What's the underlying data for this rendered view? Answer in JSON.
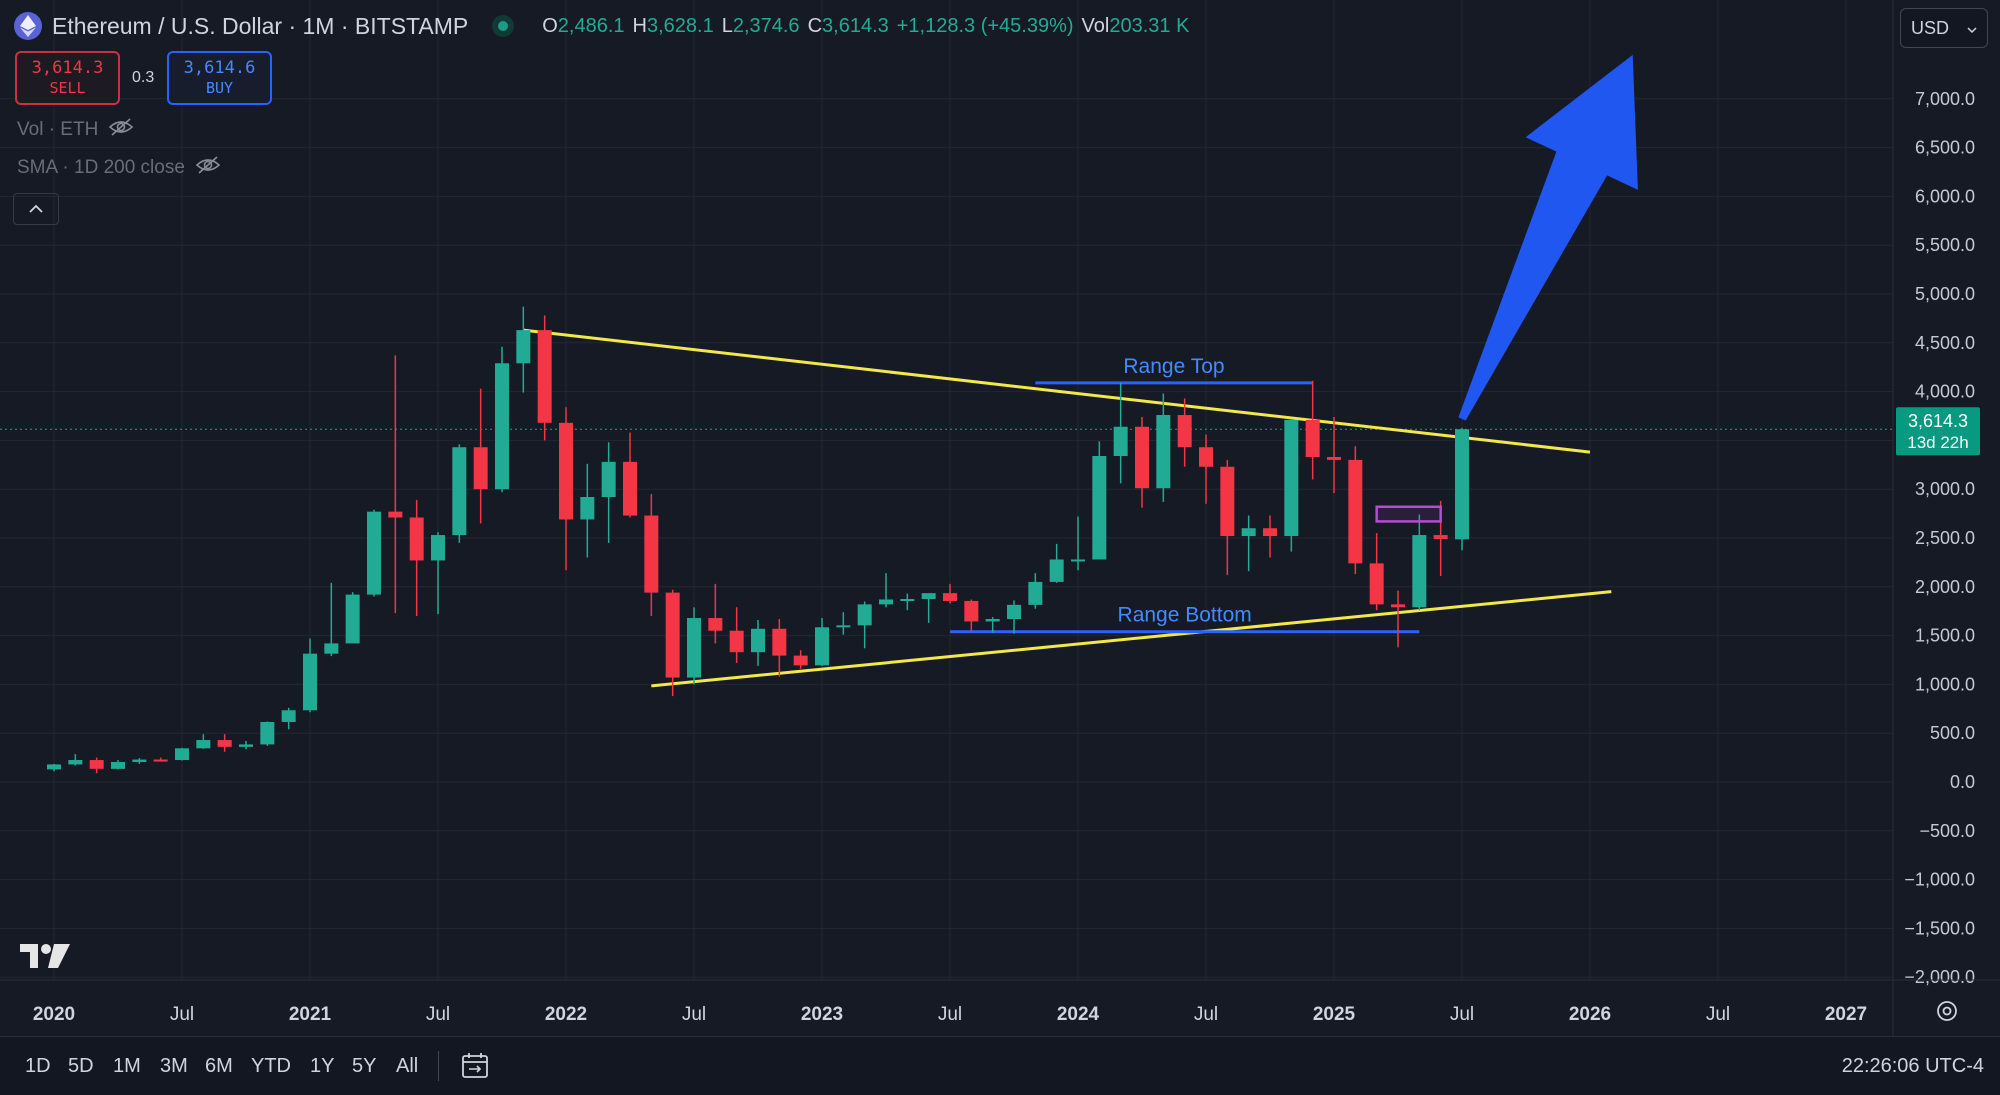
{
  "header": {
    "title": "Ethereum / U.S. Dollar · 1M · BITSTAMP",
    "ohlc": [
      {
        "k": "O",
        "v": "2,486.1"
      },
      {
        "k": "H",
        "v": "3,628.1"
      },
      {
        "k": "L",
        "v": "2,374.6"
      },
      {
        "k": "C",
        "v": "3,614.3"
      },
      {
        "k": "",
        "v": "+1,128.3 (+45.39%)"
      },
      {
        "k": "Vol",
        "v": "203.31 K"
      }
    ],
    "currency": "USD"
  },
  "trade": {
    "sell_price": "3,614.3",
    "sell_label": "SELL",
    "spread": "0.3",
    "buy_price": "3,614.6",
    "buy_label": "BUY"
  },
  "indicators": {
    "vol": "Vol · ETH",
    "sma": "SMA · 1D 200 close"
  },
  "price_tag": {
    "price": "3,614.3",
    "countdown": "13d 22h"
  },
  "timeframes": [
    "1D",
    "5D",
    "1M",
    "3M",
    "6M",
    "YTD",
    "1Y",
    "5Y",
    "All"
  ],
  "clock": "22:26:06 UTC-4",
  "colors": {
    "up": "#22ab94",
    "down": "#f23645",
    "trendline": "#f2e84b",
    "range_line": "#2962ff",
    "arrow": "#1f57f0",
    "zone": "#b74ad6",
    "background": "#161a25"
  },
  "chart_data": {
    "type": "candlestick",
    "ylim": [
      -2250,
      7450
    ],
    "y_ticks": [
      "7,000.0",
      "6,500.0",
      "6,000.0",
      "5,500.0",
      "5,000.0",
      "4,500.0",
      "4,000.0",
      "3,500.0",
      "3,000.0",
      "2,500.0",
      "2,000.0",
      "1,500.0",
      "1,000.0",
      "500.0",
      "0.0",
      "−500.0",
      "−1,000.0",
      "−1,500.0",
      "−2,000.0"
    ],
    "x_ticks": [
      "2020",
      "Jul",
      "2021",
      "Jul",
      "2022",
      "Jul",
      "2023",
      "Jul",
      "2024",
      "Jul",
      "2025",
      "Jul",
      "2026",
      "Jul",
      "2027"
    ],
    "candles": [
      {
        "t": "2020-01",
        "o": 130,
        "h": 185,
        "l": 110,
        "c": 180
      },
      {
        "t": "2020-02",
        "o": 180,
        "h": 285,
        "l": 170,
        "c": 225
      },
      {
        "t": "2020-03",
        "o": 225,
        "h": 250,
        "l": 90,
        "c": 135
      },
      {
        "t": "2020-04",
        "o": 135,
        "h": 225,
        "l": 130,
        "c": 205
      },
      {
        "t": "2020-05",
        "o": 205,
        "h": 245,
        "l": 185,
        "c": 230
      },
      {
        "t": "2020-06",
        "o": 230,
        "h": 250,
        "l": 215,
        "c": 225
      },
      {
        "t": "2020-07",
        "o": 225,
        "h": 350,
        "l": 220,
        "c": 345
      },
      {
        "t": "2020-08",
        "o": 345,
        "h": 490,
        "l": 340,
        "c": 430
      },
      {
        "t": "2020-09",
        "o": 430,
        "h": 490,
        "l": 310,
        "c": 360
      },
      {
        "t": "2020-10",
        "o": 360,
        "h": 420,
        "l": 335,
        "c": 385
      },
      {
        "t": "2020-11",
        "o": 385,
        "h": 620,
        "l": 370,
        "c": 615
      },
      {
        "t": "2020-12",
        "o": 615,
        "h": 760,
        "l": 540,
        "c": 735
      },
      {
        "t": "2021-01",
        "o": 735,
        "h": 1470,
        "l": 715,
        "c": 1315
      },
      {
        "t": "2021-02",
        "o": 1315,
        "h": 2040,
        "l": 1290,
        "c": 1420
      },
      {
        "t": "2021-03",
        "o": 1420,
        "h": 1945,
        "l": 1440,
        "c": 1920
      },
      {
        "t": "2021-04",
        "o": 1920,
        "h": 2790,
        "l": 1900,
        "c": 2770
      },
      {
        "t": "2021-05",
        "o": 2770,
        "h": 4370,
        "l": 1730,
        "c": 2710
      },
      {
        "t": "2021-06",
        "o": 2710,
        "h": 2890,
        "l": 1700,
        "c": 2270
      },
      {
        "t": "2021-07",
        "o": 2270,
        "h": 2560,
        "l": 1720,
        "c": 2530
      },
      {
        "t": "2021-08",
        "o": 2530,
        "h": 3460,
        "l": 2450,
        "c": 3430
      },
      {
        "t": "2021-09",
        "o": 3430,
        "h": 4030,
        "l": 2650,
        "c": 3000
      },
      {
        "t": "2021-10",
        "o": 3000,
        "h": 4460,
        "l": 2970,
        "c": 4290
      },
      {
        "t": "2021-11",
        "o": 4290,
        "h": 4870,
        "l": 3990,
        "c": 4630
      },
      {
        "t": "2021-12",
        "o": 4630,
        "h": 4780,
        "l": 3500,
        "c": 3680
      },
      {
        "t": "2022-01",
        "o": 3680,
        "h": 3840,
        "l": 2170,
        "c": 2690
      },
      {
        "t": "2022-02",
        "o": 2690,
        "h": 3260,
        "l": 2300,
        "c": 2920
      },
      {
        "t": "2022-03",
        "o": 2920,
        "h": 3480,
        "l": 2450,
        "c": 3280
      },
      {
        "t": "2022-04",
        "o": 3280,
        "h": 3580,
        "l": 2710,
        "c": 2730
      },
      {
        "t": "2022-05",
        "o": 2730,
        "h": 2950,
        "l": 1700,
        "c": 1940
      },
      {
        "t": "2022-06",
        "o": 1940,
        "h": 1970,
        "l": 880,
        "c": 1070
      },
      {
        "t": "2022-07",
        "o": 1070,
        "h": 1790,
        "l": 1000,
        "c": 1680
      },
      {
        "t": "2022-08",
        "o": 1680,
        "h": 2030,
        "l": 1420,
        "c": 1550
      },
      {
        "t": "2022-09",
        "o": 1550,
        "h": 1790,
        "l": 1220,
        "c": 1330
      },
      {
        "t": "2022-10",
        "o": 1330,
        "h": 1660,
        "l": 1190,
        "c": 1570
      },
      {
        "t": "2022-11",
        "o": 1570,
        "h": 1670,
        "l": 1080,
        "c": 1295
      },
      {
        "t": "2022-12",
        "o": 1295,
        "h": 1350,
        "l": 1160,
        "c": 1195
      },
      {
        "t": "2023-01",
        "o": 1195,
        "h": 1680,
        "l": 1190,
        "c": 1585
      },
      {
        "t": "2023-02",
        "o": 1585,
        "h": 1740,
        "l": 1510,
        "c": 1605
      },
      {
        "t": "2023-03",
        "o": 1605,
        "h": 1850,
        "l": 1370,
        "c": 1820
      },
      {
        "t": "2023-04",
        "o": 1820,
        "h": 2140,
        "l": 1790,
        "c": 1870
      },
      {
        "t": "2023-05",
        "o": 1870,
        "h": 1930,
        "l": 1760,
        "c": 1875
      },
      {
        "t": "2023-06",
        "o": 1875,
        "h": 1930,
        "l": 1630,
        "c": 1935
      },
      {
        "t": "2023-07",
        "o": 1935,
        "h": 2030,
        "l": 1830,
        "c": 1855
      },
      {
        "t": "2023-08",
        "o": 1855,
        "h": 1870,
        "l": 1540,
        "c": 1645
      },
      {
        "t": "2023-09",
        "o": 1645,
        "h": 1690,
        "l": 1530,
        "c": 1670
      },
      {
        "t": "2023-10",
        "o": 1670,
        "h": 1860,
        "l": 1520,
        "c": 1815
      },
      {
        "t": "2023-11",
        "o": 1815,
        "h": 2140,
        "l": 1775,
        "c": 2050
      },
      {
        "t": "2023-12",
        "o": 2050,
        "h": 2440,
        "l": 2040,
        "c": 2280
      },
      {
        "t": "2024-01",
        "o": 2280,
        "h": 2720,
        "l": 2170,
        "c": 2280
      },
      {
        "t": "2024-02",
        "o": 2280,
        "h": 3490,
        "l": 2280,
        "c": 3340
      },
      {
        "t": "2024-03",
        "o": 3340,
        "h": 4090,
        "l": 3060,
        "c": 3640
      },
      {
        "t": "2024-04",
        "o": 3640,
        "h": 3740,
        "l": 2810,
        "c": 3010
      },
      {
        "t": "2024-05",
        "o": 3010,
        "h": 3980,
        "l": 2870,
        "c": 3760
      },
      {
        "t": "2024-06",
        "o": 3760,
        "h": 3930,
        "l": 3230,
        "c": 3430
      },
      {
        "t": "2024-07",
        "o": 3430,
        "h": 3560,
        "l": 2850,
        "c": 3230
      },
      {
        "t": "2024-08",
        "o": 3230,
        "h": 3300,
        "l": 2120,
        "c": 2520
      },
      {
        "t": "2024-09",
        "o": 2520,
        "h": 2730,
        "l": 2160,
        "c": 2600
      },
      {
        "t": "2024-10",
        "o": 2600,
        "h": 2730,
        "l": 2300,
        "c": 2520
      },
      {
        "t": "2024-11",
        "o": 2520,
        "h": 3720,
        "l": 2360,
        "c": 3710
      },
      {
        "t": "2024-12",
        "o": 3710,
        "h": 4110,
        "l": 3100,
        "c": 3330
      },
      {
        "t": "2025-01",
        "o": 3330,
        "h": 3740,
        "l": 2960,
        "c": 3300
      },
      {
        "t": "2025-02",
        "o": 3300,
        "h": 3440,
        "l": 2130,
        "c": 2240
      },
      {
        "t": "2025-03",
        "o": 2240,
        "h": 2550,
        "l": 1760,
        "c": 1820
      },
      {
        "t": "2025-04",
        "o": 1820,
        "h": 1960,
        "l": 1380,
        "c": 1790
      },
      {
        "t": "2025-05",
        "o": 1790,
        "h": 2740,
        "l": 1760,
        "c": 2530
      },
      {
        "t": "2025-06",
        "o": 2530,
        "h": 2880,
        "l": 2110,
        "c": 2490
      },
      {
        "t": "2025-07",
        "o": 2486.1,
        "h": 3628.1,
        "l": 2374.6,
        "c": 3614.3
      }
    ],
    "current_price": 3614.3,
    "annotations": [
      {
        "label": "Range Top",
        "value": 4090,
        "from": "2023-11",
        "to": "2024-12",
        "color": "#2962ff"
      },
      {
        "label": "Range Bottom",
        "value": 1540,
        "from": "2023-07",
        "to": "2025-05",
        "color": "#2962ff"
      }
    ],
    "trendlines": [
      {
        "from": {
          "t": "2021-11",
          "y": 4630
        },
        "to": {
          "t": "2026-01",
          "y": 3380
        }
      },
      {
        "from": {
          "t": "2022-05",
          "y": 985
        },
        "to": {
          "t": "2026-02",
          "y": 1950
        }
      }
    ],
    "zone": {
      "from": "2025-03",
      "to": "2025-06",
      "top": 2820,
      "bottom": 2670
    },
    "arrow": {
      "from": {
        "t": "2025-07",
        "y": 3720
      },
      "to": {
        "t": "2026-03",
        "y": 7450
      }
    }
  }
}
